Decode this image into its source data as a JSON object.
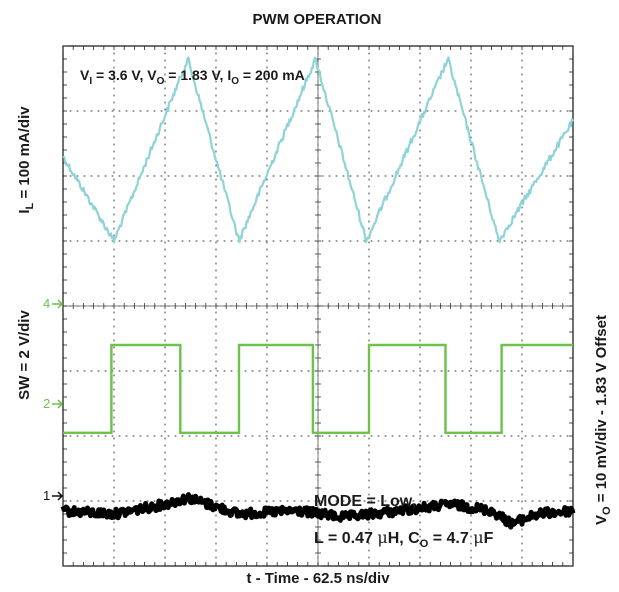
{
  "chart_data": {
    "type": "line",
    "title": "PWM OPERATION",
    "xlabel": "t - Time - 62.5 ns/div",
    "conditions": {
      "line1": {
        "p1": "V",
        "s1": "I",
        "p2": " = 3.6 V, V",
        "s2": "O",
        "p3": " = 1.83 V, I",
        "s3": "O",
        "p4": " = 200 mA"
      }
    },
    "mode_note": {
      "line1": "MODE = Low,",
      "line2": {
        "p1": "L = 0.47 ",
        "mu1": "μ",
        "p2": "H, C",
        "s1": "O",
        "p3": " = 4.7 ",
        "mu2": "μ",
        "p4": "F"
      }
    },
    "axis_labels": {
      "il": {
        "main": "I",
        "sub": "L",
        "rest": " = 100 mA/div"
      },
      "sw": "SW = 2 V/div",
      "vo": {
        "main": "V",
        "sub": "O",
        "rest": " = 10 mV/div - 1.83 V Offset"
      }
    },
    "channel_markers": [
      "4",
      "2",
      "1"
    ],
    "grid": {
      "x_divisions": 10,
      "y_divisions": 8,
      "major_gridlines": "dotted"
    },
    "x_unit": "div",
    "series": [
      {
        "channel": "IL",
        "color": "#8fd3d8",
        "points": [
          [
            0,
            1.7
          ],
          [
            1.0,
            3.0
          ],
          [
            2.45,
            0.2
          ],
          [
            3.45,
            3.0
          ],
          [
            4.95,
            0.2
          ],
          [
            5.95,
            3.0
          ],
          [
            7.55,
            0.2
          ],
          [
            8.55,
            3.0
          ],
          [
            10,
            1.15
          ]
        ]
      },
      {
        "channel": "SW",
        "color": "#6cc24a",
        "low_level": 5.95,
        "high_level": 4.6,
        "intervals_high": [
          [
            0.95,
            2.3
          ],
          [
            3.45,
            4.9
          ],
          [
            6.0,
            7.5
          ],
          [
            8.6,
            10
          ]
        ]
      },
      {
        "channel": "VO",
        "color": "#000000",
        "points": [
          [
            0,
            7.15
          ],
          [
            1.0,
            7.2
          ],
          [
            2.0,
            7.05
          ],
          [
            2.45,
            6.95
          ],
          [
            3.45,
            7.2
          ],
          [
            4.6,
            7.15
          ],
          [
            5.5,
            7.25
          ],
          [
            6.6,
            7.15
          ],
          [
            7.6,
            7.05
          ],
          [
            8.4,
            7.15
          ],
          [
            8.8,
            7.35
          ],
          [
            9.3,
            7.2
          ],
          [
            10,
            7.15
          ]
        ]
      }
    ]
  }
}
